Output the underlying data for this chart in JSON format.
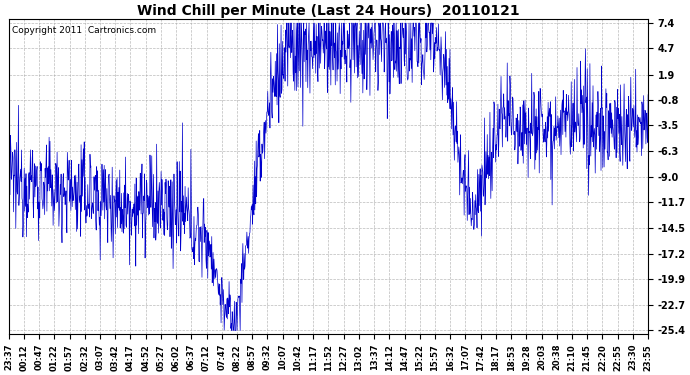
{
  "title": "Wind Chill per Minute (Last 24 Hours)  20110121",
  "copyright_text": "Copyright 2011  Cartronics.com",
  "line_color": "#0000CC",
  "bg_color": "#ffffff",
  "plot_bg_color": "#ffffff",
  "grid_color": "#aaaaaa",
  "yticks": [
    7.4,
    4.7,
    1.9,
    -0.8,
    -3.5,
    -6.3,
    -9.0,
    -11.7,
    -14.5,
    -17.2,
    -19.9,
    -22.7,
    -25.4
  ],
  "xtick_labels": [
    "23:37",
    "00:12",
    "00:47",
    "01:22",
    "01:57",
    "02:32",
    "03:07",
    "03:42",
    "04:17",
    "04:52",
    "05:27",
    "06:02",
    "06:37",
    "07:12",
    "07:47",
    "08:22",
    "08:57",
    "09:32",
    "10:07",
    "10:42",
    "11:17",
    "11:52",
    "12:27",
    "13:02",
    "13:37",
    "14:12",
    "14:47",
    "15:22",
    "15:57",
    "16:32",
    "17:07",
    "17:42",
    "18:17",
    "18:53",
    "19:28",
    "20:03",
    "20:38",
    "21:10",
    "21:45",
    "22:20",
    "22:55",
    "23:30",
    "23:55"
  ]
}
